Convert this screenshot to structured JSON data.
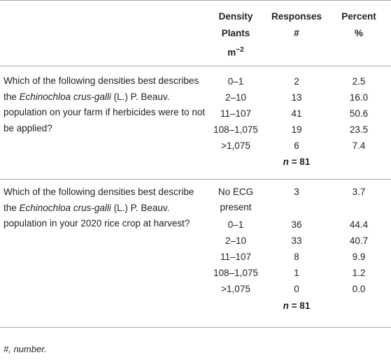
{
  "header": {
    "density_line1": "Density",
    "density_line2": "Plants",
    "density_line3": "m",
    "density_exp": "−2",
    "responses_line1": "Responses",
    "responses_line2": "#",
    "percent_line1": "Percent",
    "percent_line2": "%"
  },
  "sections": [
    {
      "question_pre": "Which of the following densities best describes the ",
      "question_species": "Echinochloa crus-galli",
      "question_post": " (L.) P. Beauv. population on your farm if herbicides were to not be applied?",
      "rows": [
        {
          "density": "0–1",
          "responses": "2",
          "percent": "2.5"
        },
        {
          "density": "2–10",
          "responses": "13",
          "percent": "16.0"
        },
        {
          "density": "11–107",
          "responses": "41",
          "percent": "50.6"
        },
        {
          "density": "108–1,075",
          "responses": "19",
          "percent": "23.5"
        },
        {
          "density": ">1,075",
          "responses": "6",
          "percent": "7.4"
        }
      ],
      "n_label": "n",
      "n_value": " = 81"
    },
    {
      "question_pre": "Which of the following densities best describe the ",
      "question_species": "Echinochloa crus-galli",
      "question_post": " (L.) P. Beauv. population in your 2020 rice crop at harvest?",
      "first_density_line1": "No ECG",
      "first_density_line2": "present",
      "rows": [
        {
          "density": "No ECG present",
          "responses": "3",
          "percent": "3.7"
        },
        {
          "density": "0–1",
          "responses": "36",
          "percent": "44.4"
        },
        {
          "density": "2–10",
          "responses": "33",
          "percent": "40.7"
        },
        {
          "density": "11–107",
          "responses": "8",
          "percent": "9.9"
        },
        {
          "density": "108–1,075",
          "responses": "1",
          "percent": "1.2"
        },
        {
          "density": ">1,075",
          "responses": "0",
          "percent": "0.0"
        }
      ],
      "n_label": "n",
      "n_value": " = 81"
    }
  ],
  "footnote": "#, number."
}
